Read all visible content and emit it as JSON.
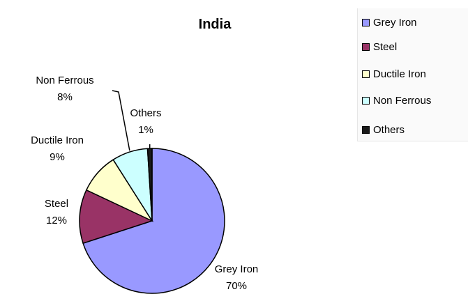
{
  "chart_data": {
    "type": "pie",
    "title": "India",
    "slices": [
      {
        "name": "Grey Iron",
        "value": 70,
        "label": "70%",
        "color": "#9999ff"
      },
      {
        "name": "Steel",
        "value": 12,
        "label": "12%",
        "color": "#993366"
      },
      {
        "name": "Ductile Iron",
        "value": 9,
        "label": "9%",
        "color": "#ffffcc"
      },
      {
        "name": "Non Ferrous",
        "value": 8,
        "label": "8%",
        "color": "#ccffff"
      },
      {
        "name": "Others",
        "value": 1,
        "label": "1%",
        "color": "#1a1a1a"
      }
    ],
    "legend_position": "top-right"
  }
}
